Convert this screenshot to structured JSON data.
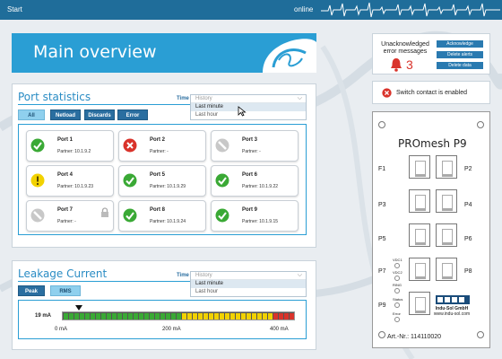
{
  "topbar": {
    "start": "Start",
    "status": "online"
  },
  "main": {
    "title": "Main overview"
  },
  "port_statistics": {
    "title": "Port statistics",
    "time_label": "Time",
    "time_options": [
      "History",
      "Last minute",
      "Last hour"
    ],
    "time_selected": "Last minute",
    "filters": [
      {
        "label": "All",
        "active": true
      },
      {
        "label": "Netload",
        "active": false
      },
      {
        "label": "Discards",
        "active": false
      },
      {
        "label": "Error",
        "active": false
      }
    ],
    "ports": [
      {
        "name": "Port 1",
        "partner": "Partner: 10.1.9.2",
        "status": "ok"
      },
      {
        "name": "Port 2",
        "partner": "Partner: -",
        "status": "error"
      },
      {
        "name": "Port 3",
        "partner": "Partner: -",
        "status": "disabled"
      },
      {
        "name": "Port 4",
        "partner": "Partner: 10.1.9.23",
        "status": "warning"
      },
      {
        "name": "Port 5",
        "partner": "Partner: 10.1.9.29",
        "status": "ok"
      },
      {
        "name": "Port 6",
        "partner": "Partner: 10.1.9.22",
        "status": "ok"
      },
      {
        "name": "Port 7",
        "partner": "Partner: -",
        "status": "disabled",
        "locked": true
      },
      {
        "name": "Port 8",
        "partner": "Partner: 10.1.9.24",
        "status": "ok"
      },
      {
        "name": "Port 9",
        "partner": "Partner: 10.1.9.15",
        "status": "ok"
      }
    ]
  },
  "leakage": {
    "title": "Leakage Current",
    "time_label": "Time",
    "time_options": [
      "History",
      "Last minute",
      "Last hour"
    ],
    "time_selected": "Last minute",
    "buttons": [
      {
        "label": "Peak",
        "active": false
      },
      {
        "label": "RMS",
        "active": true
      }
    ],
    "value_text": "19 mA",
    "value_mA": 19,
    "scale_max_mA": 400,
    "ticks": [
      "0 mA",
      "200 mA",
      "400 mA"
    ]
  },
  "alerts": {
    "text": "Unacknowledged error messages",
    "count": "3",
    "buttons": [
      "Acknowledge",
      "Delete alerts",
      "Delete data"
    ]
  },
  "switch_contact": {
    "text": "Switch contact is enabled"
  },
  "device": {
    "title": "PROmesh P9",
    "ports_left": [
      "F1",
      "P3",
      "P5",
      "P7",
      "P9"
    ],
    "ports_right": [
      "P2",
      "P4",
      "P6",
      "P8"
    ],
    "leds": [
      "VDC1",
      "VDC2",
      "RING",
      "Status",
      "Error"
    ],
    "brand": "Indu-Sol GmbH",
    "website": "www.indu-sol.com",
    "article": "Art.-Nr.: 114110020"
  },
  "colors": {
    "accent": "#2a9ed4",
    "topbar": "#1f6d9a",
    "ok": "#3aa935",
    "error": "#d9332b",
    "warning": "#f2d200",
    "disabled": "#c8c8c8"
  }
}
